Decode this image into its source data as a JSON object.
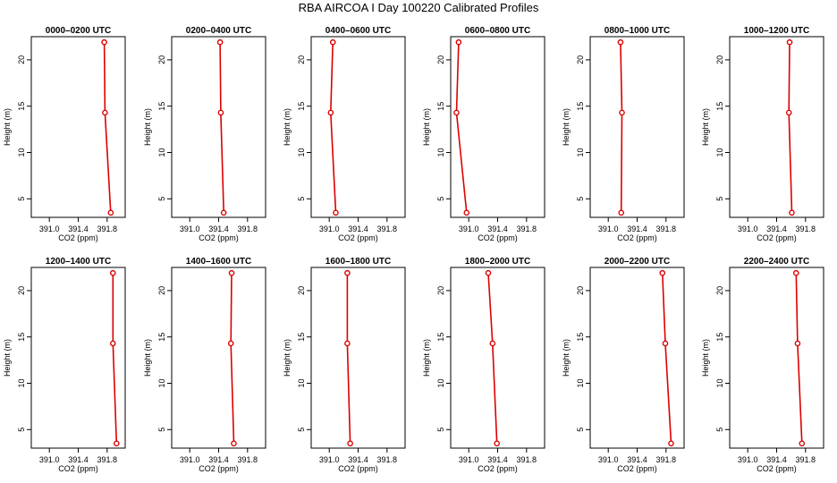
{
  "title": "RBA AIRCOA I  Day 100220  Calibrated Profiles",
  "colors": {
    "line": "#dd0000",
    "axis": "#000000"
  },
  "chart_data": {
    "type": "line",
    "layout": "small-multiples 2x6",
    "xlabel": "CO2 (ppm)",
    "ylabel": "Height (m)",
    "xlim": [
      390.75,
      392.05
    ],
    "ylim": [
      3.0,
      22.5
    ],
    "xticks": [
      391.0,
      391.4,
      391.8
    ],
    "xtick_labels": [
      "391.0",
      "391.4",
      "391.8"
    ],
    "yticks": [
      5,
      10,
      15,
      20
    ],
    "ytick_labels": [
      "5",
      "10",
      "15",
      "20"
    ],
    "heights": [
      3.5,
      14.3,
      21.9
    ],
    "grid": false,
    "panels": [
      {
        "title": "0000–0200 UTC",
        "values": [
          391.85,
          391.77,
          391.76
        ]
      },
      {
        "title": "0200–0400 UTC",
        "values": [
          391.47,
          391.43,
          391.42
        ]
      },
      {
        "title": "0400–0600 UTC",
        "values": [
          391.09,
          391.02,
          391.05
        ]
      },
      {
        "title": "0600–0800 UTC",
        "values": [
          390.97,
          390.83,
          390.86
        ]
      },
      {
        "title": "0800–1000 UTC",
        "values": [
          391.18,
          391.19,
          391.17
        ]
      },
      {
        "title": "1000–1200 UTC",
        "values": [
          391.61,
          391.57,
          391.58
        ]
      },
      {
        "title": "1200–1400 UTC",
        "values": [
          391.93,
          391.88,
          391.88
        ]
      },
      {
        "title": "1400–1600 UTC",
        "values": [
          391.61,
          391.57,
          391.58
        ]
      },
      {
        "title": "1600–1800 UTC",
        "values": [
          391.29,
          391.25,
          391.25
        ]
      },
      {
        "title": "1800–2000 UTC",
        "values": [
          391.39,
          391.33,
          391.27
        ]
      },
      {
        "title": "2000–2200 UTC",
        "values": [
          391.87,
          391.79,
          391.75
        ]
      },
      {
        "title": "2200–2400 UTC",
        "values": [
          391.75,
          391.69,
          391.67
        ]
      }
    ]
  }
}
